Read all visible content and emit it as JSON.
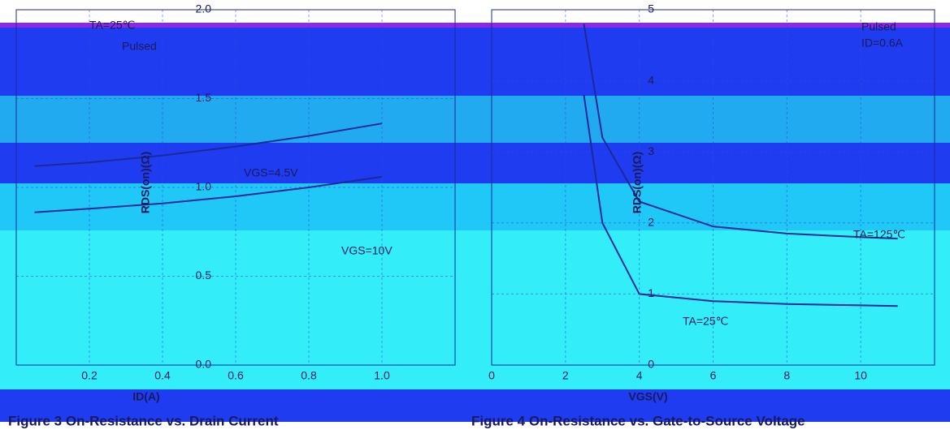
{
  "chart_data": [
    {
      "type": "line",
      "title": "Figure 3 On-Resistance vs. Drain Current",
      "x_label": "ID(A)",
      "y_label": "RDS(on)(Ω)",
      "annotations": [
        "TA=25℃",
        "Pulsed"
      ],
      "x": [
        0.05,
        0.2,
        0.4,
        0.6,
        0.8,
        1.0
      ],
      "series": [
        {
          "name": "VGS=4.5V",
          "color": "#1a2a9a",
          "values": [
            1.12,
            1.14,
            1.18,
            1.23,
            1.29,
            1.36
          ]
        },
        {
          "name": "VGS=10V",
          "color": "#1a2a9a",
          "values": [
            0.86,
            0.88,
            0.91,
            0.95,
            1.0,
            1.06
          ]
        }
      ],
      "xlim": [
        0,
        1.2
      ],
      "ylim": [
        0,
        2.0
      ],
      "xticks": [
        {
          "value": 0.2,
          "label": "0.2"
        },
        {
          "value": 0.4,
          "label": "0.4"
        },
        {
          "value": 0.6,
          "label": "0.6"
        },
        {
          "value": 0.8,
          "label": "0.8"
        },
        {
          "value": 1.0,
          "label": "1.0"
        }
      ],
      "yticks": [
        {
          "value": 0,
          "label": "0.0"
        },
        0.5,
        {
          "value": 1,
          "label": "1.0"
        },
        1.5,
        {
          "value": 2,
          "label": "2.0"
        }
      ],
      "grid": true
    },
    {
      "type": "line",
      "title": "Figure 4 On-Resistance vs. Gate-to-Source Voltage",
      "x_label": "VGS(V)",
      "y_label": "RDS(on)(Ω)",
      "annotations": [
        "Pulsed",
        "ID=0.6A"
      ],
      "x": [
        2.5,
        3,
        4,
        6,
        8,
        10,
        11
      ],
      "series": [
        {
          "name": "TA=125℃",
          "color": "#1a2a9a",
          "values": [
            4.8,
            3.2,
            2.3,
            1.95,
            1.85,
            1.8,
            1.78
          ]
        },
        {
          "name": "TA=25℃",
          "color": "#1a2a9a",
          "values": [
            3.8,
            2.0,
            1.0,
            0.9,
            0.86,
            0.84,
            0.83
          ]
        }
      ],
      "xlim": [
        0,
        12
      ],
      "ylim": [
        0,
        5
      ],
      "xticks": [
        0,
        2,
        4,
        6,
        8,
        10
      ],
      "yticks": [
        0,
        1,
        2,
        3,
        4,
        5
      ],
      "grid": true
    }
  ]
}
